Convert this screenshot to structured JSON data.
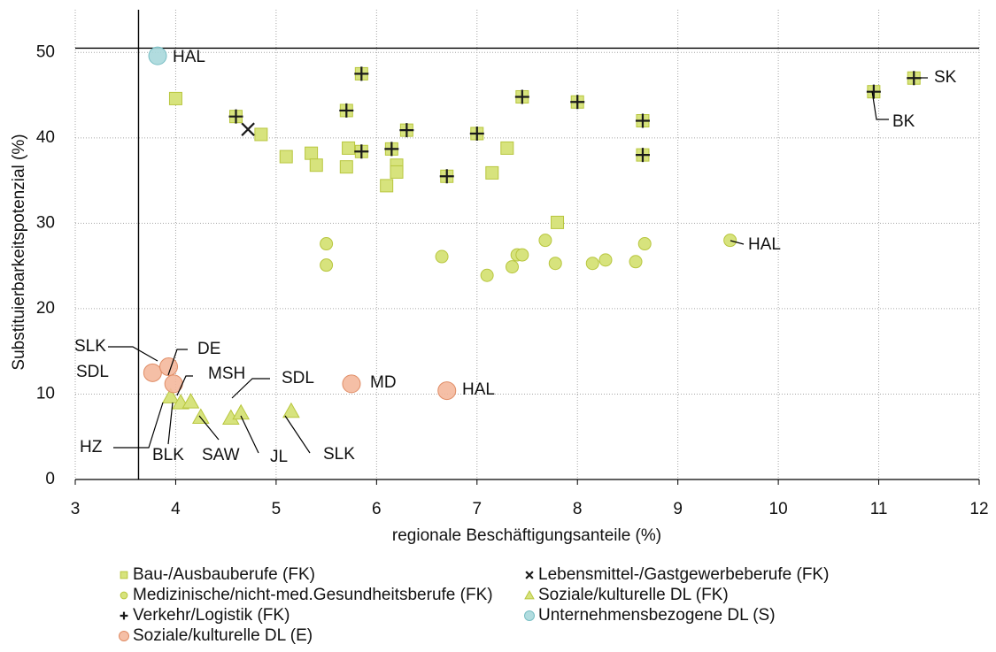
{
  "chart_data": {
    "type": "scatter",
    "xlabel": "regionale Beschäftigungsanteile (%)",
    "ylabel": "Substituierbarkeitspotenzial (%)",
    "xlim": [
      3,
      12
    ],
    "ylim": [
      0,
      55
    ],
    "xticks": [
      3,
      4,
      5,
      6,
      7,
      8,
      9,
      10,
      11,
      12
    ],
    "yticks": [
      0,
      10,
      20,
      30,
      40,
      50
    ],
    "grid": true,
    "legend": "bottom",
    "reference_lines": {
      "x": 3.63,
      "y": 50.5
    },
    "series": [
      {
        "name": "Bau-/Ausbauberufe (FK)",
        "marker": "square",
        "color": "#d7e37d",
        "x": [
          4.0,
          4.85,
          5.1,
          5.35,
          5.4,
          5.7,
          5.72,
          6.1,
          6.2,
          6.2,
          7.15,
          7.3,
          7.8
        ],
        "y": [
          44.6,
          40.4,
          37.8,
          38.2,
          36.8,
          36.6,
          38.8,
          34.4,
          36.8,
          36.0,
          35.9,
          38.8,
          30.1
        ]
      },
      {
        "name": "Lebensmittel-/Gastgewerbeberufe (FK)",
        "marker": "x",
        "color": "#1a1a1a",
        "x": [
          4.72
        ],
        "y": [
          41.0
        ]
      },
      {
        "name": "Medizinische/nicht-med.Gesundheitsberufe (FK)",
        "marker": "circle",
        "color": "#d7e37d",
        "x": [
          5.5,
          5.5,
          6.65,
          7.1,
          7.35,
          7.4,
          7.45,
          7.68,
          7.78,
          8.15,
          8.28,
          8.58,
          8.67,
          9.52
        ],
        "y": [
          27.6,
          25.1,
          26.1,
          23.9,
          24.9,
          26.3,
          26.3,
          28.0,
          25.3,
          25.3,
          25.7,
          25.5,
          27.6,
          28.0
        ]
      },
      {
        "name": "Soziale/kulturelle DL (FK)",
        "marker": "triangle",
        "color": "#d7e37d",
        "x": [
          3.95,
          4.05,
          4.15,
          4.25,
          4.55,
          4.65,
          5.15
        ],
        "y": [
          9.7,
          9.0,
          9.1,
          7.3,
          7.2,
          7.8,
          8.0
        ]
      },
      {
        "name": "Verkehr/Logistik (FK)",
        "marker": "plus",
        "color": "#1a1a1a",
        "x": [
          4.6,
          5.7,
          5.85,
          5.85,
          6.15,
          6.3,
          6.7,
          7.0,
          7.45,
          8.0,
          8.65,
          8.65,
          10.95,
          11.35
        ],
        "y": [
          42.5,
          43.2,
          47.5,
          38.4,
          38.7,
          40.9,
          35.5,
          40.5,
          44.8,
          44.2,
          42.0,
          38.0,
          45.4,
          47.0
        ]
      },
      {
        "name": "Unternehmensbezogene DL (S)",
        "marker": "circle-big",
        "color": "#a8d8dc",
        "x": [
          3.82
        ],
        "y": [
          49.6
        ]
      },
      {
        "name": "Soziale/kulturelle DL (E)",
        "marker": "circle-big",
        "color": "#f4b89c",
        "x": [
          3.77,
          3.93,
          3.98,
          5.75,
          6.7
        ],
        "y": [
          12.5,
          13.2,
          11.2,
          11.2,
          10.4
        ]
      }
    ],
    "annotations": [
      "HAL",
      "SK",
      "BK",
      "HAL",
      "SLK",
      "SDL",
      "DE",
      "MSH",
      "SDL",
      "MD",
      "HAL",
      "HZ",
      "BLK",
      "SAW",
      "JL",
      "SLK"
    ]
  }
}
